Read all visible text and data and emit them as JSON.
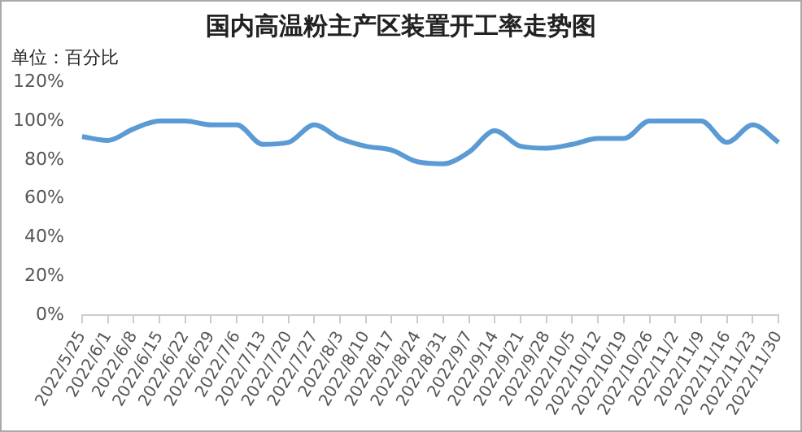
{
  "chart_data": {
    "type": "line",
    "title": "国内高温粉主产区装置开工率走势图",
    "subtitle": "单位：百分比",
    "categories": [
      "2022/5/25",
      "2022/6/1",
      "2022/6/8",
      "2022/6/15",
      "2022/6/22",
      "2022/6/29",
      "2022/7/6",
      "2022/7/13",
      "2022/7/20",
      "2022/7/27",
      "2022/8/3",
      "2022/8/10",
      "2022/8/17",
      "2022/8/24",
      "2022/8/31",
      "2022/9/7",
      "2022/9/14",
      "2022/9/21",
      "2022/9/28",
      "2022/10/5",
      "2022/10/12",
      "2022/10/19",
      "2022/10/26",
      "2022/11/2",
      "2022/11/9",
      "2022/11/16",
      "2022/11/23",
      "2022/11/30"
    ],
    "series": [
      {
        "color": "#5b9bd5",
        "values": [
          92,
          90,
          96,
          100,
          100,
          98,
          98,
          88,
          89,
          98,
          91,
          87,
          85,
          79,
          78,
          84,
          95,
          87,
          86,
          88,
          91,
          91,
          100,
          100,
          100,
          89,
          98,
          89
        ]
      }
    ],
    "ylim": [
      0,
      120
    ],
    "yticks": [
      {
        "value": 0,
        "label": "0%"
      },
      {
        "value": 20,
        "label": "20%"
      },
      {
        "value": 40,
        "label": "40%"
      },
      {
        "value": 60,
        "label": "60%"
      },
      {
        "value": 80,
        "label": "80%"
      },
      {
        "value": 100,
        "label": "100%"
      },
      {
        "value": 120,
        "label": "120%"
      }
    ],
    "grid": false,
    "legend": false,
    "marker": "none",
    "line_style": "solid"
  }
}
